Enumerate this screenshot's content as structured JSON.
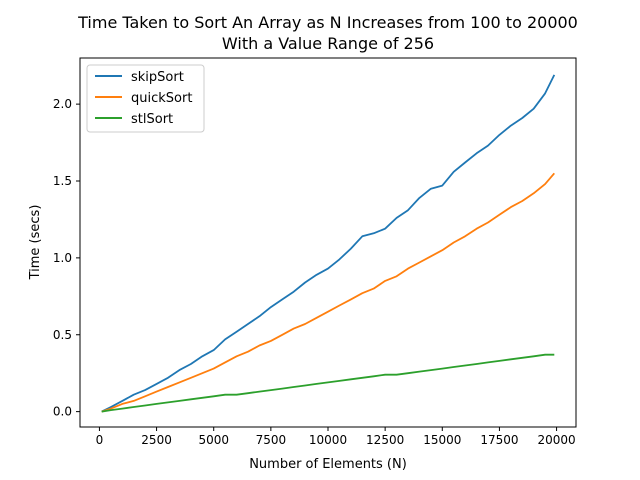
{
  "chart_data": {
    "type": "line",
    "title_line1": "Time Taken to Sort An Array as N Increases from 100 to 20000",
    "title_line2": "With a Value Range of 256",
    "xlabel": "Number of Elements (N)",
    "ylabel": "Time (secs)",
    "xlim": [
      -850,
      20850
    ],
    "ylim": [
      -0.1,
      2.3
    ],
    "xticks": [
      0,
      2500,
      5000,
      7500,
      10000,
      12500,
      15000,
      17500,
      20000
    ],
    "yticks": [
      0.0,
      0.5,
      1.0,
      1.5,
      2.0
    ],
    "xtick_labels": [
      "0",
      "2500",
      "5000",
      "7500",
      "10000",
      "12500",
      "15000",
      "17500",
      "20000"
    ],
    "ytick_labels": [
      "0.0",
      "0.5",
      "1.0",
      "1.5",
      "2.0"
    ],
    "legend_position": "top-left",
    "grid": false,
    "series": [
      {
        "name": "skipSort",
        "color": "#1f77b4",
        "points": [
          [
            100,
            0.0
          ],
          [
            500,
            0.03
          ],
          [
            1000,
            0.07
          ],
          [
            1500,
            0.11
          ],
          [
            2000,
            0.14
          ],
          [
            2500,
            0.18
          ],
          [
            3000,
            0.22
          ],
          [
            3500,
            0.27
          ],
          [
            4000,
            0.31
          ],
          [
            4500,
            0.36
          ],
          [
            5000,
            0.4
          ],
          [
            5500,
            0.47
          ],
          [
            6000,
            0.52
          ],
          [
            6500,
            0.57
          ],
          [
            7000,
            0.62
          ],
          [
            7500,
            0.68
          ],
          [
            8000,
            0.73
          ],
          [
            8500,
            0.78
          ],
          [
            9000,
            0.84
          ],
          [
            9500,
            0.89
          ],
          [
            10000,
            0.93
          ],
          [
            10500,
            0.99
          ],
          [
            11000,
            1.06
          ],
          [
            11500,
            1.14
          ],
          [
            12000,
            1.16
          ],
          [
            12500,
            1.19
          ],
          [
            13000,
            1.26
          ],
          [
            13500,
            1.31
          ],
          [
            14000,
            1.39
          ],
          [
            14500,
            1.45
          ],
          [
            15000,
            1.47
          ],
          [
            15500,
            1.56
          ],
          [
            16000,
            1.62
          ],
          [
            16500,
            1.68
          ],
          [
            17000,
            1.73
          ],
          [
            17500,
            1.8
          ],
          [
            18000,
            1.86
          ],
          [
            18500,
            1.91
          ],
          [
            19000,
            1.97
          ],
          [
            19500,
            2.07
          ],
          [
            19900,
            2.19
          ]
        ]
      },
      {
        "name": "quickSort",
        "color": "#ff7f0e",
        "points": [
          [
            100,
            0.0
          ],
          [
            500,
            0.02
          ],
          [
            1000,
            0.05
          ],
          [
            1500,
            0.07
          ],
          [
            2000,
            0.1
          ],
          [
            2500,
            0.13
          ],
          [
            3000,
            0.16
          ],
          [
            3500,
            0.19
          ],
          [
            4000,
            0.22
          ],
          [
            4500,
            0.25
          ],
          [
            5000,
            0.28
          ],
          [
            5500,
            0.32
          ],
          [
            6000,
            0.36
          ],
          [
            6500,
            0.39
          ],
          [
            7000,
            0.43
          ],
          [
            7500,
            0.46
          ],
          [
            8000,
            0.5
          ],
          [
            8500,
            0.54
          ],
          [
            9000,
            0.57
          ],
          [
            9500,
            0.61
          ],
          [
            10000,
            0.65
          ],
          [
            10500,
            0.69
          ],
          [
            11000,
            0.73
          ],
          [
            11500,
            0.77
          ],
          [
            12000,
            0.8
          ],
          [
            12500,
            0.85
          ],
          [
            13000,
            0.88
          ],
          [
            13500,
            0.93
          ],
          [
            14000,
            0.97
          ],
          [
            14500,
            1.01
          ],
          [
            15000,
            1.05
          ],
          [
            15500,
            1.1
          ],
          [
            16000,
            1.14
          ],
          [
            16500,
            1.19
          ],
          [
            17000,
            1.23
          ],
          [
            17500,
            1.28
          ],
          [
            18000,
            1.33
          ],
          [
            18500,
            1.37
          ],
          [
            19000,
            1.42
          ],
          [
            19500,
            1.48
          ],
          [
            19900,
            1.55
          ]
        ]
      },
      {
        "name": "stlSort",
        "color": "#2ca02c",
        "points": [
          [
            100,
            0.0
          ],
          [
            500,
            0.01
          ],
          [
            1000,
            0.02
          ],
          [
            1500,
            0.03
          ],
          [
            2000,
            0.04
          ],
          [
            2500,
            0.05
          ],
          [
            3000,
            0.06
          ],
          [
            3500,
            0.07
          ],
          [
            4000,
            0.08
          ],
          [
            4500,
            0.09
          ],
          [
            5000,
            0.1
          ],
          [
            5500,
            0.11
          ],
          [
            6000,
            0.11
          ],
          [
            6500,
            0.12
          ],
          [
            7000,
            0.13
          ],
          [
            7500,
            0.14
          ],
          [
            8000,
            0.15
          ],
          [
            8500,
            0.16
          ],
          [
            9000,
            0.17
          ],
          [
            9500,
            0.18
          ],
          [
            10000,
            0.19
          ],
          [
            10500,
            0.2
          ],
          [
            11000,
            0.21
          ],
          [
            11500,
            0.22
          ],
          [
            12000,
            0.23
          ],
          [
            12500,
            0.24
          ],
          [
            13000,
            0.24
          ],
          [
            13500,
            0.25
          ],
          [
            14000,
            0.26
          ],
          [
            14500,
            0.27
          ],
          [
            15000,
            0.28
          ],
          [
            15500,
            0.29
          ],
          [
            16000,
            0.3
          ],
          [
            16500,
            0.31
          ],
          [
            17000,
            0.32
          ],
          [
            17500,
            0.33
          ],
          [
            18000,
            0.34
          ],
          [
            18500,
            0.35
          ],
          [
            19000,
            0.36
          ],
          [
            19500,
            0.37
          ],
          [
            19900,
            0.37
          ]
        ]
      }
    ]
  }
}
